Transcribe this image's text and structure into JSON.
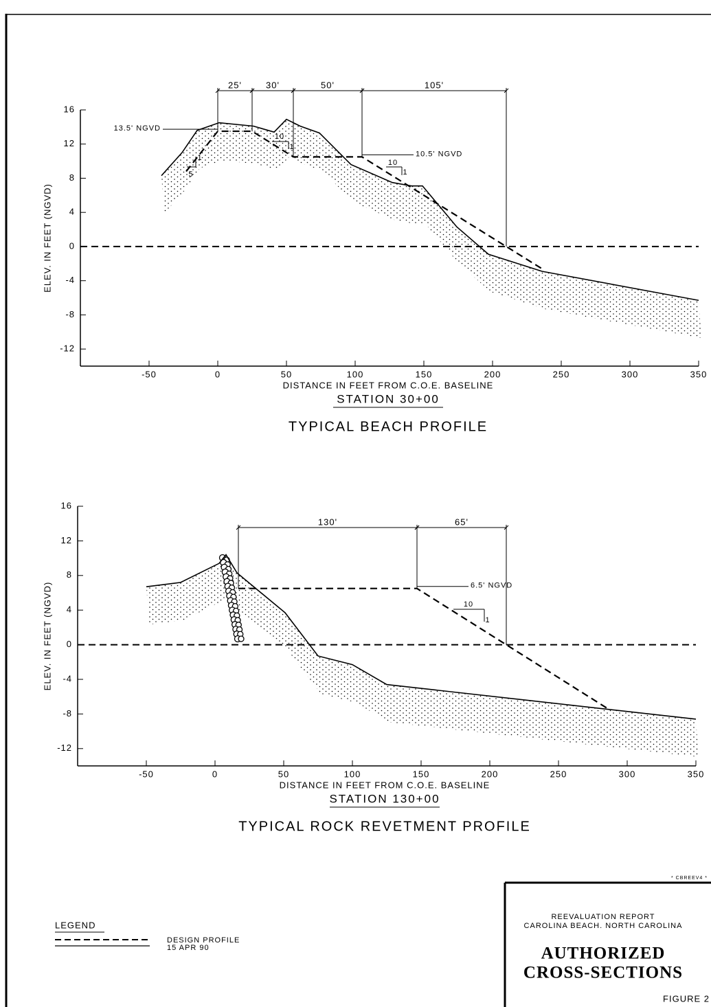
{
  "chart_data": [
    {
      "type": "line",
      "title": "TYPICAL BEACH PROFILE",
      "subtitle": "STATION 30+00",
      "xlabel": "DISTANCE IN FEET FROM C.O.E. BASELINE",
      "ylabel": "ELEV. IN FEET (NGVD)",
      "xlim": [
        -100,
        350
      ],
      "ylim": [
        -14,
        16
      ],
      "xticks": [
        -50,
        0,
        50,
        100,
        150,
        200,
        250,
        300,
        350
      ],
      "yticks": [
        -12,
        -8,
        -4,
        0,
        4,
        8,
        12,
        16
      ],
      "reference_line": {
        "y": 0,
        "style": "dashed"
      },
      "series": [
        {
          "name": "DESIGN PROFILE",
          "color": "#000000",
          "style": "dashed",
          "x": [
            -23,
            0,
            25,
            55,
            105,
            237
          ],
          "values": [
            8.8,
            13.5,
            13.5,
            10.5,
            10.5,
            -2.7
          ]
        },
        {
          "name": "15 APR 90",
          "color": "#000000",
          "style": "solid",
          "x": [
            -41,
            -26,
            -15,
            1,
            26,
            41,
            50,
            60,
            74,
            97,
            127,
            141,
            149,
            174,
            197,
            236,
            350
          ],
          "values": [
            8.3,
            11,
            13.6,
            14.5,
            14.1,
            13.4,
            14.9,
            14.1,
            13.3,
            9.6,
            7.5,
            7.1,
            7.1,
            2.3,
            -0.9,
            -2.9,
            -6.3
          ]
        }
      ],
      "dimensions": [
        {
          "label": "25'",
          "from": 0,
          "to": 25
        },
        {
          "label": "30'",
          "from": 25,
          "to": 55
        },
        {
          "label": "50'",
          "from": 55,
          "to": 105
        },
        {
          "label": "105'",
          "from": 105,
          "to": 210
        }
      ],
      "level_labels": [
        {
          "text": "13.5' NGVD",
          "x": 0,
          "y": 13.5
        },
        {
          "text": "10.5' NGVD",
          "x": 105,
          "y": 10.5
        }
      ],
      "slopes": [
        {
          "rise": 1,
          "run": 5
        },
        {
          "rise": 1,
          "run": 10
        },
        {
          "rise": 1,
          "run": 10
        }
      ]
    },
    {
      "type": "line",
      "title": "TYPICAL ROCK REVETMENT PROFILE",
      "subtitle": "STATION 130+00",
      "xlabel": "DISTANCE IN FEET FROM C.O.E. BASELINE",
      "ylabel": "ELEV. IN FEET (NGVD)",
      "xlim": [
        -100,
        350
      ],
      "ylim": [
        -14,
        16
      ],
      "xticks": [
        -50,
        0,
        50,
        100,
        150,
        200,
        250,
        300,
        350
      ],
      "yticks": [
        -12,
        -8,
        -4,
        0,
        4,
        8,
        12,
        16
      ],
      "reference_line": {
        "y": 0,
        "style": "dashed"
      },
      "series": [
        {
          "name": "DESIGN PROFILE",
          "color": "#000000",
          "style": "dashed",
          "x": [
            17,
            147,
            285
          ],
          "values": [
            6.5,
            6.5,
            -7.3
          ]
        },
        {
          "name": "15 APR 90",
          "color": "#000000",
          "style": "solid",
          "x": [
            -50,
            -25,
            3,
            8,
            16,
            51,
            75,
            100,
            125,
            350
          ],
          "values": [
            6.7,
            7.2,
            9.4,
            10.4,
            8.3,
            3.7,
            -1.3,
            -2.3,
            -4.6,
            -8.6
          ]
        }
      ],
      "dimensions": [
        {
          "label": "130'",
          "from": 17,
          "to": 147
        },
        {
          "label": "65'",
          "from": 147,
          "to": 212
        }
      ],
      "level_labels": [
        {
          "text": "6.5' NGVD",
          "x": 147,
          "y": 6.5
        }
      ],
      "slopes": [
        {
          "rise": 1,
          "run": 10
        }
      ]
    }
  ],
  "legend": {
    "title": "LEGEND"
  },
  "title_block": {
    "stamp": "* CBREEV4 *",
    "report": "REEVALUATION REPORT",
    "location": "CAROLINA BEACH. NORTH CAROLINA",
    "title_line1": "AUTHORIZED",
    "title_line2": "CROSS-SECTIONS",
    "figure": "FIGURE 2"
  }
}
